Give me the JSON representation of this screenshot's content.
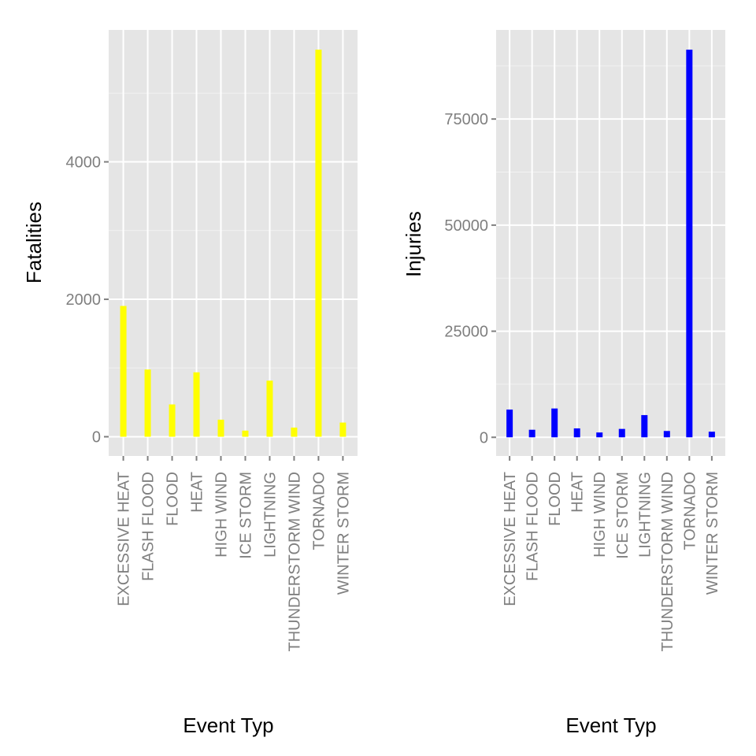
{
  "chart_data": [
    {
      "type": "bar",
      "xlabel": "Event Typ",
      "ylabel": "Fatalities",
      "categories": [
        "EXCESSIVE HEAT",
        "FLASH FLOOD",
        "FLOOD",
        "HEAT",
        "HIGH WIND",
        "ICE STORM",
        "LIGHTNING",
        "THUNDERSTORM WIND",
        "TORNADO",
        "WINTER STORM"
      ],
      "values": [
        1903,
        978,
        470,
        937,
        248,
        89,
        816,
        133,
        5633,
        206
      ],
      "yticks": [
        0,
        2000,
        4000
      ],
      "ytick_labels": [
        "0",
        "2000",
        "4000"
      ],
      "ylim": [
        -280,
        5920
      ],
      "bar_color": "#FFFF00",
      "panel_background": "#E5E5E5",
      "grid": true
    },
    {
      "type": "bar",
      "xlabel": "Event Typ",
      "ylabel": "Injuries",
      "categories": [
        "EXCESSIVE HEAT",
        "FLASH FLOOD",
        "FLOOD",
        "HEAT",
        "HIGH WIND",
        "ICE STORM",
        "LIGHTNING",
        "THUNDERSTORM WIND",
        "TORNADO",
        "WINTER STORM"
      ],
      "values": [
        6525,
        1777,
        6789,
        2100,
        1137,
        1975,
        5230,
        1488,
        91346,
        1321
      ],
      "yticks": [
        0,
        25000,
        50000,
        75000
      ],
      "ytick_labels": [
        "0",
        "25000",
        "50000",
        "75000"
      ],
      "ylim": [
        -4400,
        96000
      ],
      "bar_color": "#0000FF",
      "panel_background": "#E5E5E5",
      "grid": true
    }
  ]
}
